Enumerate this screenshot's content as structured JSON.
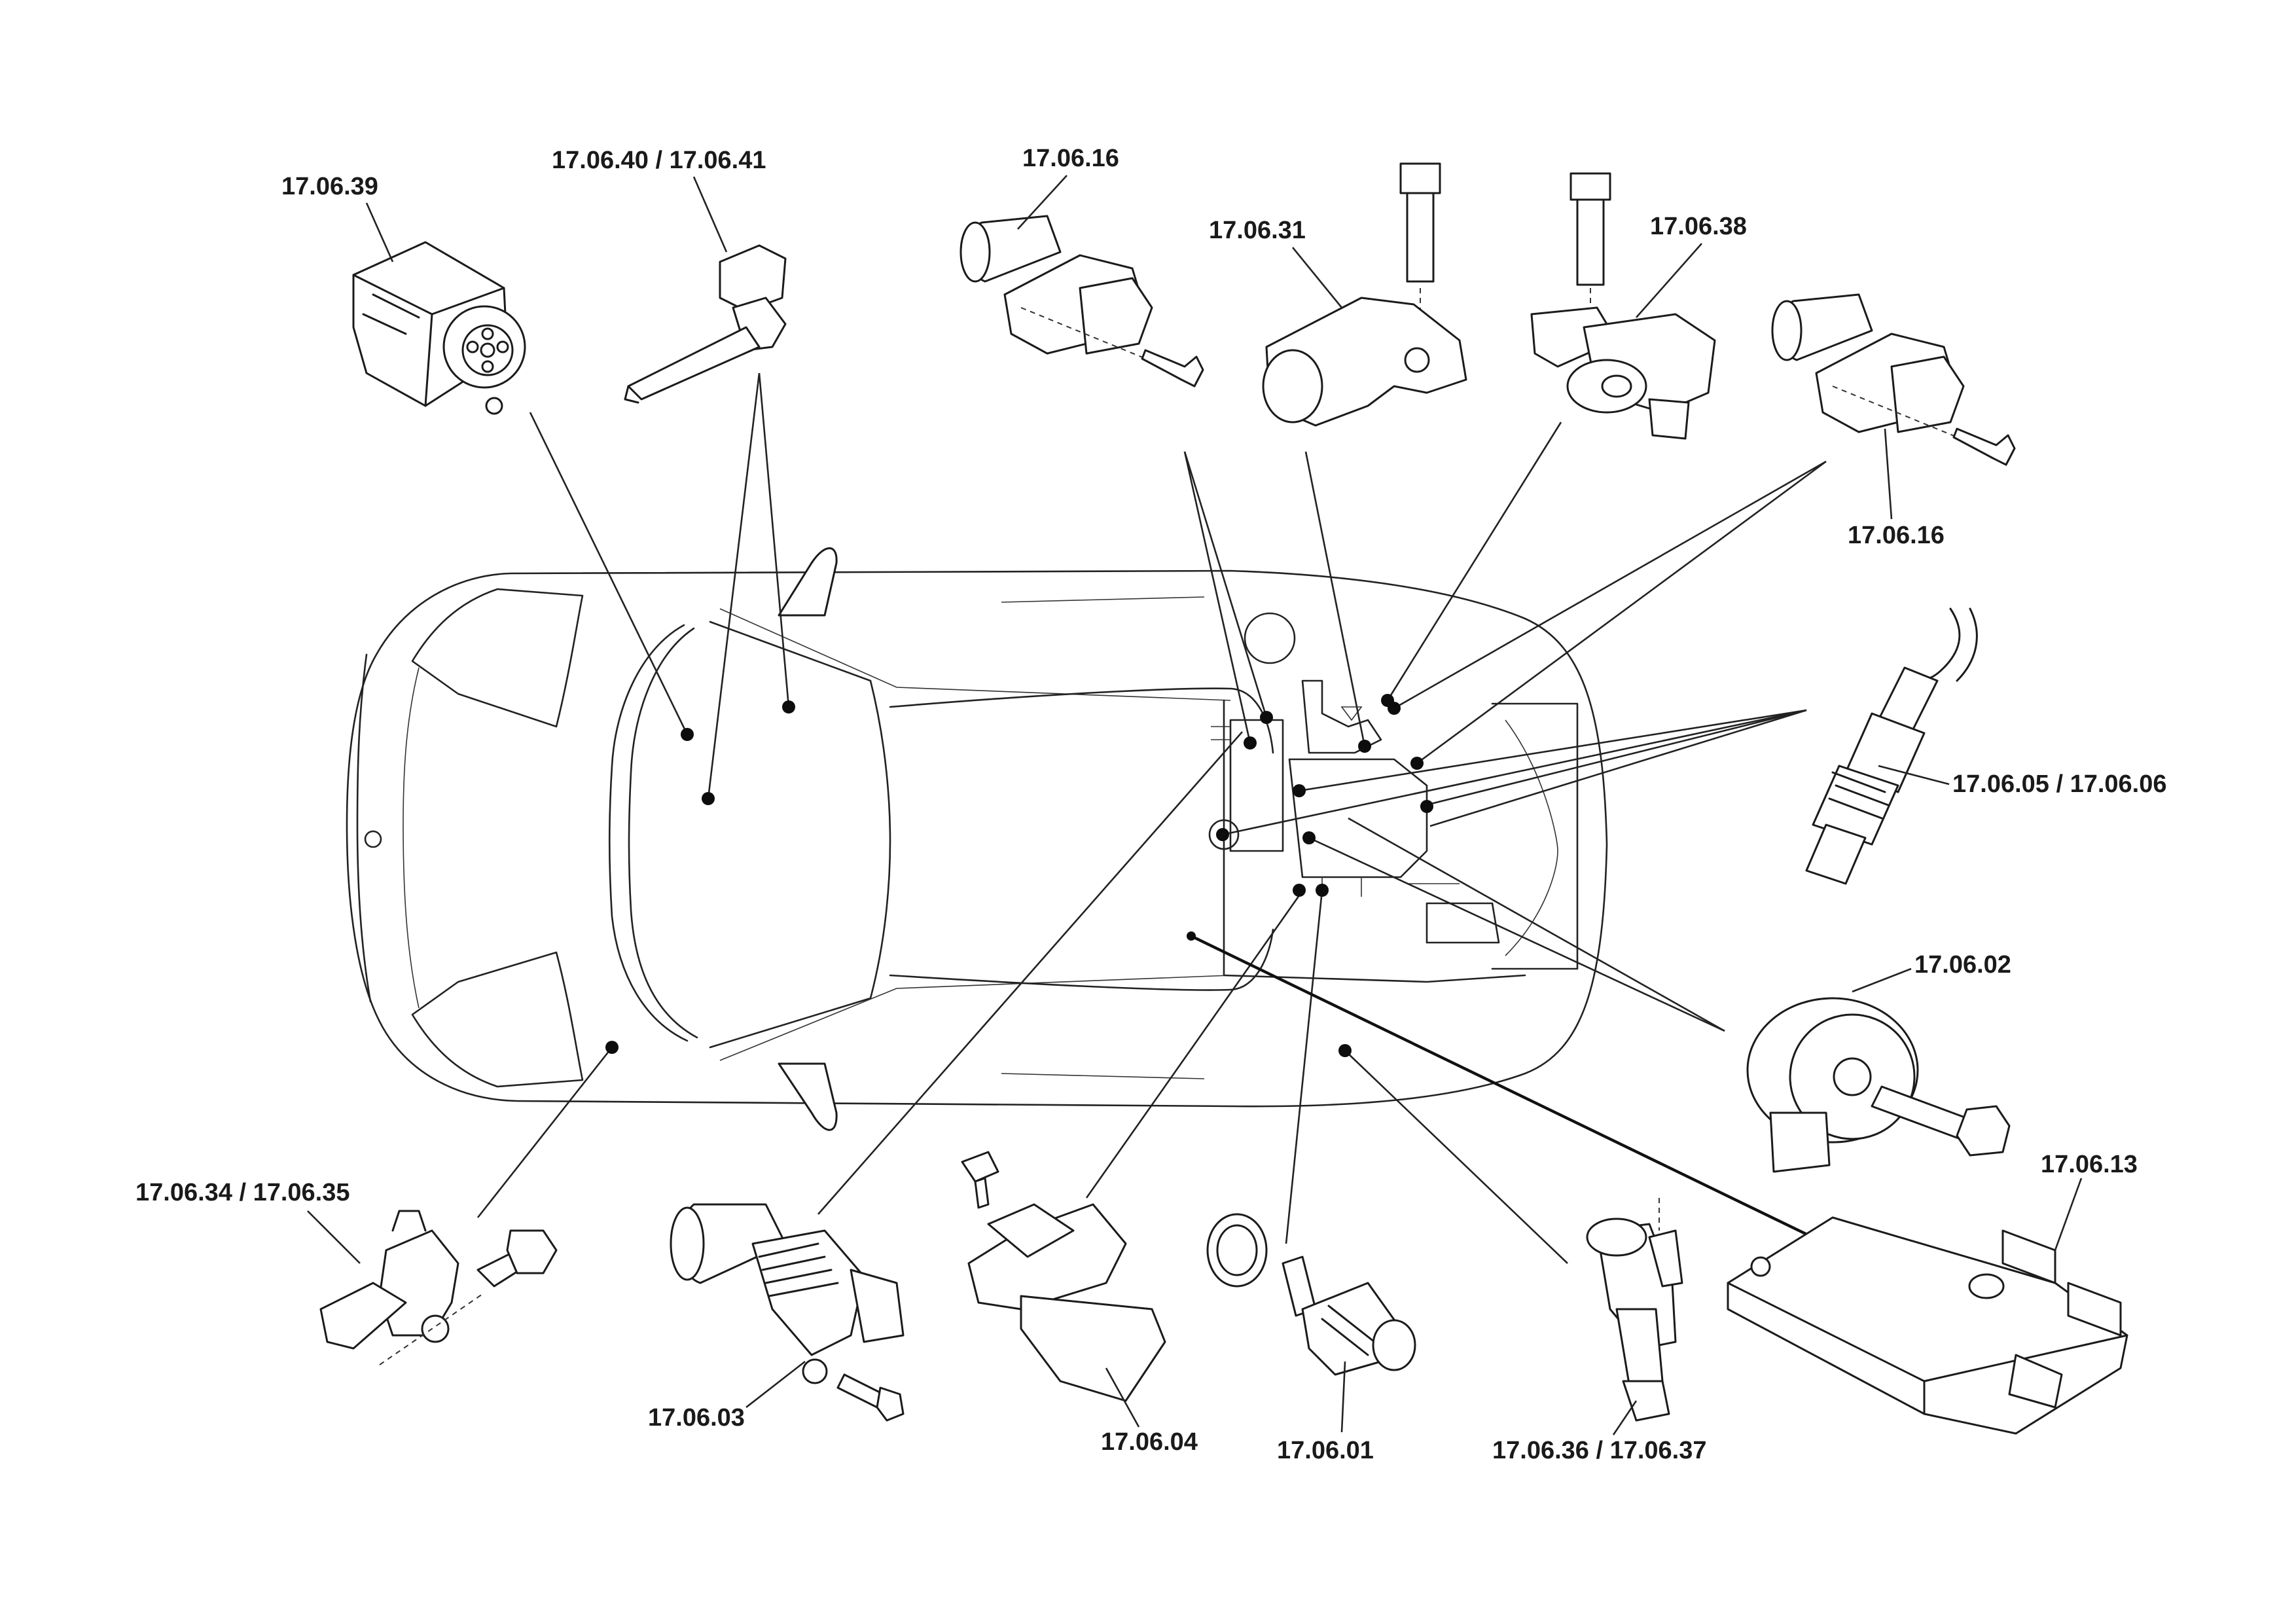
{
  "labels": {
    "l_17_06_39": "17.06.39",
    "l_17_06_40_41": "17.06.40 / 17.06.41",
    "l_17_06_16_a": "17.06.16",
    "l_17_06_31": "17.06.31",
    "l_17_06_38": "17.06.38",
    "l_17_06_16_b": "17.06.16",
    "l_17_06_05_06": "17.06.05 / 17.06.06",
    "l_17_06_02": "17.06.02",
    "l_17_06_13": "17.06.13",
    "l_17_06_34_35": "17.06.34 / 17.06.35",
    "l_17_06_03": "17.06.03",
    "l_17_06_04": "17.06.04",
    "l_17_06_01": "17.06.01",
    "l_17_06_36_37": "17.06.36 / 17.06.37"
  }
}
